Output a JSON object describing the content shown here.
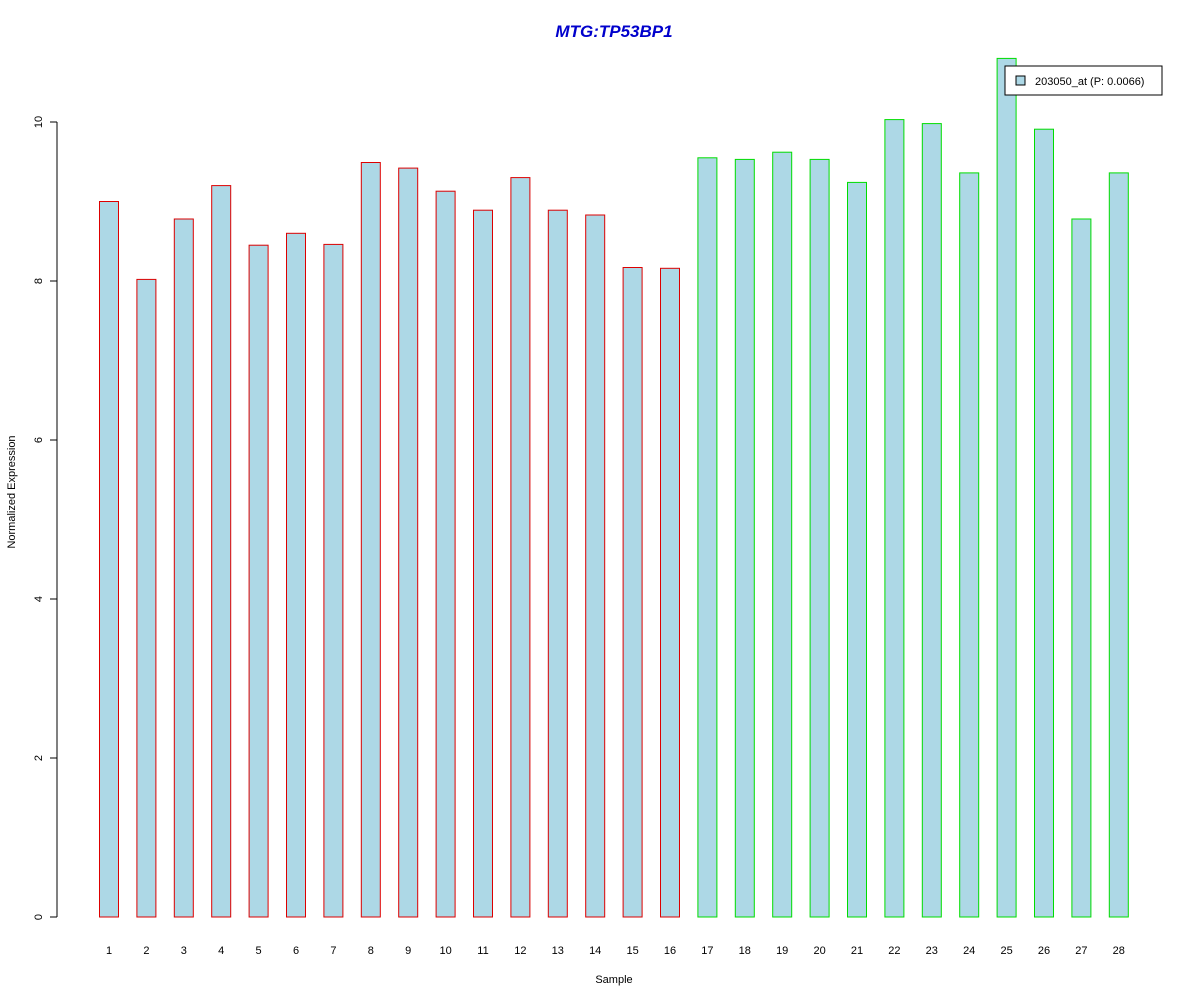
{
  "chart_data": {
    "type": "bar",
    "title": "MTG:TP53BP1",
    "xlabel": "Sample",
    "ylabel": "Normalized Expression",
    "ylim": [
      0,
      10.8
    ],
    "yticks": [
      0,
      2,
      4,
      6,
      8,
      10
    ],
    "categories": [
      "1",
      "2",
      "3",
      "4",
      "5",
      "6",
      "7",
      "8",
      "9",
      "10",
      "11",
      "12",
      "13",
      "14",
      "15",
      "16",
      "17",
      "18",
      "19",
      "20",
      "21",
      "22",
      "23",
      "24",
      "25",
      "26",
      "27",
      "28"
    ],
    "values": [
      9.0,
      8.02,
      8.78,
      9.2,
      8.45,
      8.6,
      8.46,
      9.49,
      9.42,
      9.13,
      8.89,
      9.3,
      8.89,
      8.83,
      8.17,
      8.16,
      9.55,
      9.53,
      9.62,
      9.53,
      9.24,
      10.03,
      9.98,
      9.36,
      10.8,
      9.91,
      8.78,
      9.36
    ],
    "groups": [
      "red",
      "red",
      "red",
      "red",
      "red",
      "red",
      "red",
      "red",
      "red",
      "red",
      "red",
      "red",
      "red",
      "red",
      "red",
      "red",
      "green",
      "green",
      "green",
      "green",
      "green",
      "green",
      "green",
      "green",
      "green",
      "green",
      "green",
      "green"
    ],
    "fill_color": "#add8e6",
    "border_colors": {
      "red": "#dd0000",
      "green": "#00dd00"
    },
    "legend": {
      "label": "203050_at (P: 0.0066)",
      "placement": "top-right"
    },
    "grid": false
  }
}
